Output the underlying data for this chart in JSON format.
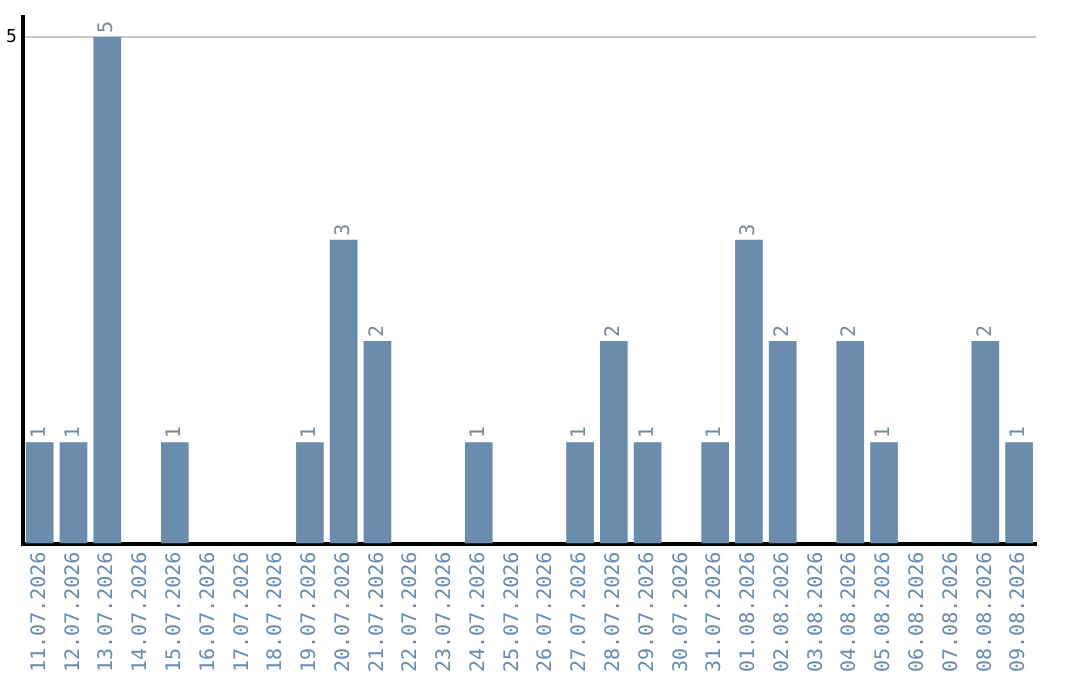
{
  "chart_data": {
    "type": "bar",
    "categories": [
      "11.07.2026",
      "12.07.2026",
      "13.07.2026",
      "14.07.2026",
      "15.07.2026",
      "16.07.2026",
      "17.07.2026",
      "18.07.2026",
      "19.07.2026",
      "20.07.2026",
      "21.07.2026",
      "22.07.2026",
      "23.07.2026",
      "24.07.2026",
      "25.07.2026",
      "26.07.2026",
      "27.07.2026",
      "28.07.2026",
      "29.07.2026",
      "30.07.2026",
      "31.07.2026",
      "01.08.2026",
      "02.08.2026",
      "03.08.2026",
      "04.08.2026",
      "05.08.2026",
      "06.08.2026",
      "07.08.2026",
      "08.08.2026",
      "09.08.2026"
    ],
    "values": [
      1,
      1,
      5,
      0,
      1,
      0,
      0,
      0,
      1,
      3,
      2,
      0,
      0,
      1,
      0,
      0,
      1,
      2,
      1,
      0,
      1,
      3,
      2,
      0,
      2,
      1,
      0,
      0,
      2,
      1
    ],
    "value_labels": [
      "1",
      "1",
      "5",
      null,
      "1",
      null,
      null,
      null,
      "1",
      "3",
      "2",
      null,
      null,
      "1",
      null,
      null,
      "1",
      "2",
      "1",
      null,
      "1",
      "3",
      "2",
      null,
      "2",
      "1",
      null,
      null,
      "2",
      "1"
    ],
    "color": "#6b8cac",
    "ylim": [
      0,
      5.2
    ],
    "yticks": [
      5
    ],
    "grid": "y",
    "legend": false
  }
}
